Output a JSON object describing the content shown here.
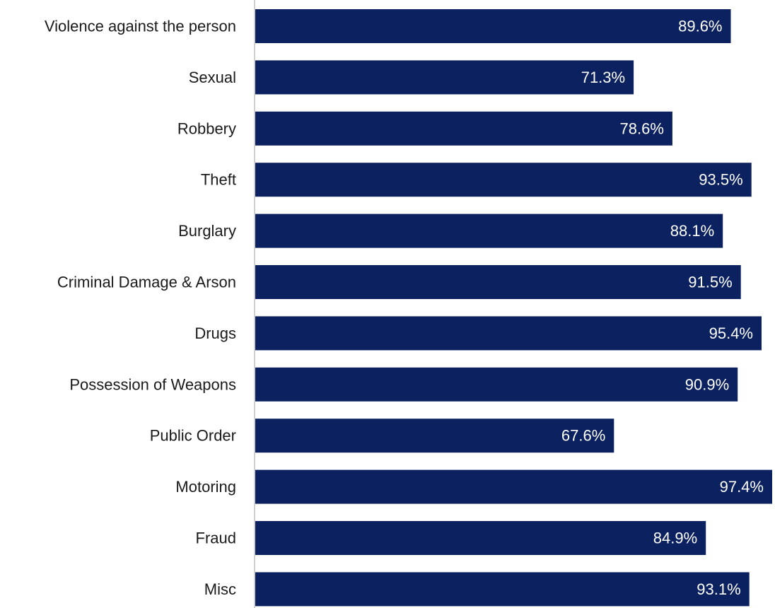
{
  "chart_data": {
    "type": "bar",
    "orientation": "horizontal",
    "categories": [
      "Violence against the person",
      "Sexual",
      "Robbery",
      "Theft",
      "Burglary",
      "Criminal Damage & Arson",
      "Drugs",
      "Possession of Weapons",
      "Public Order",
      "Motoring",
      "Fraud",
      "Misc"
    ],
    "values": [
      89.6,
      71.3,
      78.6,
      93.5,
      88.1,
      91.5,
      95.4,
      90.9,
      67.6,
      97.4,
      84.9,
      93.1
    ],
    "value_labels": [
      "89.6%",
      "71.3%",
      "78.6%",
      "93.5%",
      "88.1%",
      "91.5%",
      "95.4%",
      "90.9%",
      "67.6%",
      "97.4%",
      "84.9%",
      "93.1%"
    ],
    "xlim": [
      0,
      97.4
    ],
    "grid": false,
    "legend": "none",
    "bar_color": "#0c2260",
    "label_color": "#ffffff",
    "axis_color": "#d0d0d0"
  }
}
